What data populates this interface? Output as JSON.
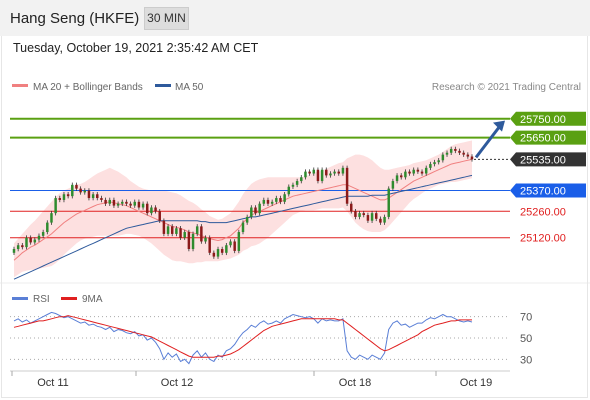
{
  "header": {
    "title": "Hang Seng (HKFE)",
    "timeframe_button": "30 MIN"
  },
  "date_line": "Tuesday, October 19, 2021 2:35:42 AM CET",
  "legend": {
    "ma20": {
      "label": "MA 20 + Bollinger Bands",
      "color": "#f08080"
    },
    "ma50": {
      "label": "MA 50",
      "color": "#2e5a9c"
    },
    "credit": "Research © 2021 Trading Central"
  },
  "rsi_legend": {
    "rsi": {
      "label": "RSI",
      "color": "#5a7fd6"
    },
    "ma9": {
      "label": "9MA",
      "color": "#e02020"
    }
  },
  "colors": {
    "resistance": "#5aa012",
    "current": "#333333",
    "pivot": "#1a5ee8",
    "support": "#e02020",
    "up_candle": "#2e8b2e",
    "down_candle": "#8b1a1a",
    "arrow": "#2e5a9c",
    "band_fill": "#fde0e0"
  },
  "chart_data": [
    {
      "type": "candlestick",
      "title": "Hang Seng (HKFE)",
      "timeframe": "30 MIN",
      "ylim": [
        24880,
        25860
      ],
      "x_tick_labels": [
        "Oct 11",
        "Oct 12",
        "Oct 18",
        "Oct 19"
      ],
      "levels": [
        {
          "value": 25750,
          "label": "25750.00",
          "kind": "resistance"
        },
        {
          "value": 25650,
          "label": "25650.00",
          "kind": "resistance"
        },
        {
          "value": 25535,
          "label": "25535.00",
          "kind": "current"
        },
        {
          "value": 25370,
          "label": "25370.00",
          "kind": "pivot"
        },
        {
          "value": 25260,
          "label": "25260.00",
          "kind": "support"
        },
        {
          "value": 25120,
          "label": "25120.00",
          "kind": "support"
        }
      ],
      "closes": [
        25060,
        25080,
        25070,
        25120,
        25095,
        25110,
        25130,
        25150,
        25200,
        25250,
        25330,
        25320,
        25350,
        25340,
        25400,
        25380,
        25360,
        25370,
        25330,
        25350,
        25330,
        25320,
        25300,
        25320,
        25290,
        25300,
        25310,
        25300,
        25290,
        25310,
        25280,
        25300,
        25250,
        25280,
        25260,
        25210,
        25140,
        25180,
        25140,
        25170,
        25120,
        25150,
        25060,
        25140,
        25180,
        25100,
        25120,
        25040,
        25020,
        25060,
        25040,
        25080,
        25100,
        25050,
        25150,
        25200,
        25230,
        25280,
        25250,
        25300,
        25320,
        25300,
        25310,
        25330,
        25310,
        25350,
        25390,
        25400,
        25420,
        25440,
        25470,
        25460,
        25480,
        25420,
        25480,
        25450,
        25460,
        25470,
        25460,
        25490,
        25300,
        25260,
        25230,
        25250,
        25240,
        25210,
        25250,
        25220,
        25200,
        25230,
        25380,
        25420,
        25450,
        25440,
        25470,
        25460,
        25480,
        25470,
        25460,
        25490,
        25510,
        25520,
        25530,
        25560,
        25570,
        25590,
        25580,
        25570,
        25560,
        25550,
        25535
      ],
      "ma20": [
        25000,
        25020,
        25040,
        25055,
        25070,
        25080,
        25095,
        25110,
        25125,
        25140,
        25160,
        25180,
        25200,
        25215,
        25230,
        25245,
        25255,
        25265,
        25275,
        25285,
        25295,
        25300,
        25305,
        25310,
        25305,
        25300,
        25295,
        25290,
        25280,
        25270,
        25260,
        25250,
        25240,
        25230,
        25220,
        25210,
        25200,
        25190,
        25180,
        25175,
        25170,
        25160,
        25150,
        25145,
        25140,
        25130,
        25125,
        25115,
        25110,
        25105,
        25110,
        25120,
        25130,
        25150,
        25170,
        25200,
        25220,
        25240,
        25250,
        25260,
        25270,
        25280,
        25290,
        25300,
        25310,
        25320,
        25330,
        25340,
        25345,
        25350,
        25355,
        25360,
        25365,
        25370,
        25375,
        25380,
        25385,
        25390,
        25395,
        25400,
        25400,
        25390,
        25380,
        25370,
        25360,
        25350,
        25340,
        25330,
        25320,
        25320,
        25330,
        25345,
        25360,
        25375,
        25390,
        25405,
        25420,
        25430,
        25440,
        25450,
        25460,
        25470,
        25480,
        25490,
        25500,
        25510,
        25515,
        25520,
        25525,
        25530,
        25535
      ],
      "ma50": [
        24900,
        24910,
        24920,
        24930,
        24940,
        24950,
        24960,
        24970,
        24980,
        24990,
        25000,
        25010,
        25020,
        25030,
        25040,
        25050,
        25060,
        25070,
        25080,
        25090,
        25100,
        25110,
        25120,
        25130,
        25140,
        25150,
        25160,
        25170,
        25175,
        25180,
        25185,
        25190,
        25195,
        25200,
        25205,
        25210,
        25210,
        25210,
        25210,
        25210,
        25210,
        25210,
        25210,
        25210,
        25210,
        25205,
        25205,
        25200,
        25200,
        25200,
        25200,
        25200,
        25205,
        25210,
        25215,
        25220,
        25225,
        25230,
        25230,
        25235,
        25240,
        25245,
        25250,
        25255,
        25260,
        25265,
        25270,
        25275,
        25280,
        25285,
        25290,
        25295,
        25300,
        25305,
        25310,
        25315,
        25320,
        25325,
        25330,
        25335,
        25340,
        25340,
        25340,
        25340,
        25340,
        25340,
        25345,
        25345,
        25345,
        25345,
        25350,
        25355,
        25360,
        25365,
        25370,
        25375,
        25380,
        25385,
        25390,
        25395,
        25400,
        25405,
        25410,
        25415,
        25420,
        25425,
        25430,
        25435,
        25440,
        25445,
        25450
      ],
      "bb_width": [
        90,
        95,
        100,
        110,
        120,
        130,
        140,
        150,
        160,
        170,
        175,
        175,
        170,
        165,
        160,
        155,
        150,
        150,
        155,
        160,
        165,
        170,
        175,
        180,
        175,
        170,
        160,
        150,
        140,
        135,
        130,
        130,
        135,
        140,
        150,
        160,
        170,
        175,
        180,
        180,
        175,
        170,
        165,
        160,
        150,
        140,
        130,
        120,
        115,
        110,
        110,
        115,
        120,
        130,
        140,
        150,
        160,
        165,
        170,
        170,
        165,
        160,
        150,
        140,
        130,
        120,
        110,
        100,
        95,
        90,
        90,
        95,
        100,
        100,
        100,
        105,
        110,
        115,
        120,
        120,
        140,
        160,
        180,
        190,
        195,
        195,
        190,
        180,
        170,
        160,
        150,
        140,
        130,
        120,
        110,
        100,
        95,
        90,
        85,
        80,
        80,
        80,
        80,
        85,
        90,
        95,
        100,
        100,
        100,
        100,
        100
      ]
    },
    {
      "type": "line",
      "title": "RSI",
      "ylim": [
        20,
        80
      ],
      "y_tick_labels": [
        "70",
        "50",
        "30"
      ],
      "series": [
        {
          "name": "RSI",
          "values": [
            66,
            68,
            65,
            67,
            64,
            66,
            68,
            70,
            72,
            74,
            73,
            71,
            69,
            70,
            68,
            66,
            64,
            65,
            62,
            63,
            61,
            60,
            58,
            60,
            56,
            58,
            57,
            55,
            54,
            56,
            52,
            53,
            48,
            50,
            46,
            40,
            30,
            36,
            32,
            35,
            28,
            30,
            26,
            34,
            38,
            32,
            36,
            30,
            28,
            34,
            32,
            38,
            40,
            44,
            50,
            55,
            58,
            62,
            60,
            64,
            66,
            63,
            64,
            66,
            64,
            68,
            70,
            72,
            71,
            70,
            69,
            70,
            68,
            64,
            68,
            66,
            67,
            66,
            66,
            68,
            38,
            32,
            30,
            34,
            32,
            30,
            34,
            32,
            30,
            36,
            58,
            64,
            66,
            62,
            63,
            60,
            62,
            64,
            64,
            67,
            69,
            68,
            70,
            72,
            70,
            70,
            68,
            66,
            65,
            66,
            65
          ]
        },
        {
          "name": "9MA",
          "values": [
            60,
            61,
            62,
            63,
            64,
            65,
            66,
            66,
            67,
            68,
            69,
            70,
            70,
            71,
            70,
            69,
            68,
            67,
            66,
            65,
            64,
            63,
            62,
            61,
            60,
            59,
            58,
            57,
            56,
            55,
            54,
            53,
            52,
            51,
            49,
            47,
            45,
            43,
            41,
            39,
            37,
            35,
            33,
            32,
            32,
            32,
            32,
            32,
            32,
            33,
            33,
            34,
            35,
            37,
            39,
            42,
            45,
            48,
            51,
            54,
            57,
            59,
            61,
            62,
            63,
            64,
            65,
            66,
            67,
            68,
            68,
            68,
            68,
            68,
            68,
            68,
            68,
            68,
            67,
            67,
            64,
            61,
            58,
            55,
            52,
            49,
            46,
            43,
            40,
            38,
            39,
            41,
            43,
            45,
            47,
            49,
            51,
            53,
            56,
            58,
            60,
            62,
            63,
            64,
            65,
            66,
            66,
            67,
            67,
            67,
            67
          ]
        }
      ]
    }
  ]
}
